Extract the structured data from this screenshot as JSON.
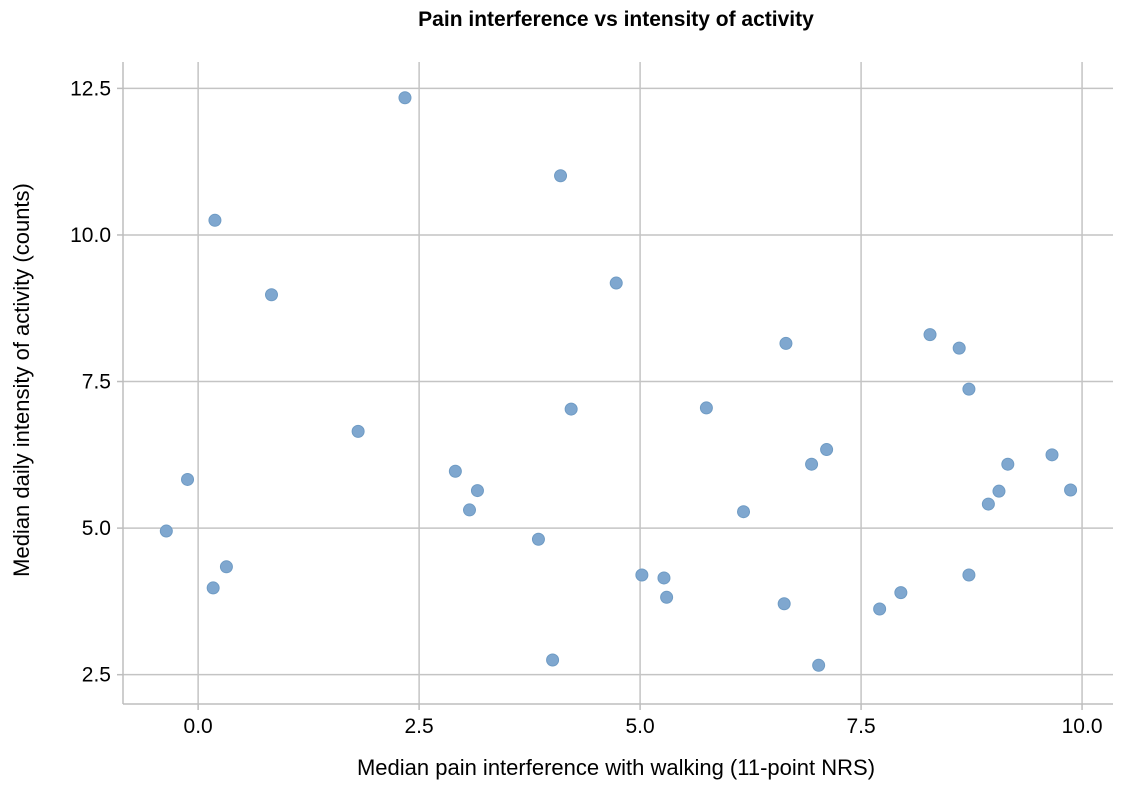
{
  "chart_data": {
    "type": "scatter",
    "title": "Pain interference vs intensity of activity",
    "xlabel": "Median pain interference with walking (11-point NRS)",
    "ylabel": "Median daily intensity of activity (counts)",
    "xlim": [
      -0.85,
      10.35
    ],
    "ylim": [
      2.0,
      12.95
    ],
    "x_ticks": [
      0.0,
      2.5,
      5.0,
      7.5,
      10.0
    ],
    "x_tick_labels": [
      "0.0",
      "2.5",
      "5.0",
      "7.5",
      "10.0"
    ],
    "y_ticks": [
      2.5,
      5.0,
      7.5,
      10.0,
      12.5
    ],
    "y_tick_labels": [
      "2.5",
      "5.0",
      "7.5",
      "10.0",
      "12.5"
    ],
    "grid": true,
    "point_color": "#7fa7cf",
    "points": [
      {
        "x": -0.36,
        "y": 4.95
      },
      {
        "x": -0.12,
        "y": 5.83
      },
      {
        "x": 0.17,
        "y": 3.98
      },
      {
        "x": 0.19,
        "y": 10.25
      },
      {
        "x": 0.32,
        "y": 4.34
      },
      {
        "x": 0.83,
        "y": 8.98
      },
      {
        "x": 1.81,
        "y": 6.65
      },
      {
        "x": 2.34,
        "y": 12.34
      },
      {
        "x": 2.91,
        "y": 5.97
      },
      {
        "x": 3.07,
        "y": 5.31
      },
      {
        "x": 3.16,
        "y": 5.64
      },
      {
        "x": 3.85,
        "y": 4.81
      },
      {
        "x": 4.01,
        "y": 2.75
      },
      {
        "x": 4.1,
        "y": 11.01
      },
      {
        "x": 4.22,
        "y": 7.03
      },
      {
        "x": 4.73,
        "y": 9.18
      },
      {
        "x": 5.02,
        "y": 4.2
      },
      {
        "x": 5.27,
        "y": 4.15
      },
      {
        "x": 5.3,
        "y": 3.82
      },
      {
        "x": 5.75,
        "y": 7.05
      },
      {
        "x": 6.17,
        "y": 5.28
      },
      {
        "x": 6.63,
        "y": 3.71
      },
      {
        "x": 6.65,
        "y": 8.15
      },
      {
        "x": 6.94,
        "y": 6.09
      },
      {
        "x": 7.02,
        "y": 2.66
      },
      {
        "x": 7.11,
        "y": 6.34
      },
      {
        "x": 7.71,
        "y": 3.62
      },
      {
        "x": 7.95,
        "y": 3.9
      },
      {
        "x": 8.28,
        "y": 8.3
      },
      {
        "x": 8.61,
        "y": 8.07
      },
      {
        "x": 8.72,
        "y": 7.37
      },
      {
        "x": 8.72,
        "y": 4.2
      },
      {
        "x": 8.94,
        "y": 5.41
      },
      {
        "x": 9.06,
        "y": 5.63
      },
      {
        "x": 9.16,
        "y": 6.09
      },
      {
        "x": 9.66,
        "y": 6.25
      },
      {
        "x": 9.87,
        "y": 5.65
      }
    ]
  }
}
